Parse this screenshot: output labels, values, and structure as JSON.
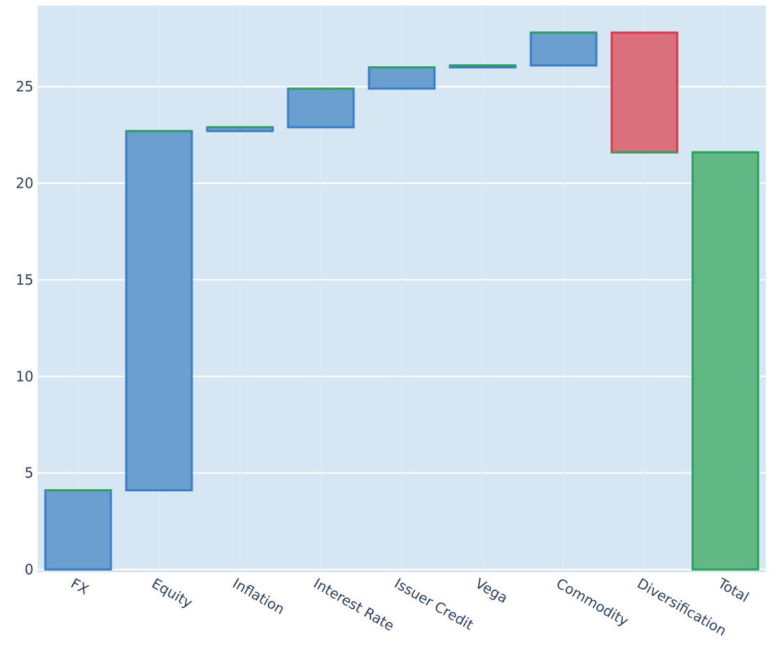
{
  "chart_data": {
    "type": "waterfall",
    "categories": [
      "FX",
      "Equity",
      "Inflation",
      "Interest Rate",
      "Issuer Credit",
      "Vega",
      "Commodity",
      "Diversification",
      "Total"
    ],
    "measure": [
      "relative",
      "relative",
      "relative",
      "relative",
      "relative",
      "relative",
      "relative",
      "relative",
      "total"
    ],
    "values": [
      4.1,
      18.6,
      0.2,
      2.0,
      1.1,
      0.1,
      1.7,
      -6.2,
      21.6
    ],
    "increasing_color": "#6a9fd0",
    "increasing_line": "#3a7dc4",
    "decreasing_color": "#d9707c",
    "decreasing_line": "#d9374a",
    "total_color": "#62b985",
    "total_line": "#2ca05a",
    "connector_color": "#2ca05a",
    "ylim": [
      0,
      29.2
    ],
    "yticks": [
      0,
      5,
      10,
      15,
      20,
      25
    ],
    "grid": true
  }
}
